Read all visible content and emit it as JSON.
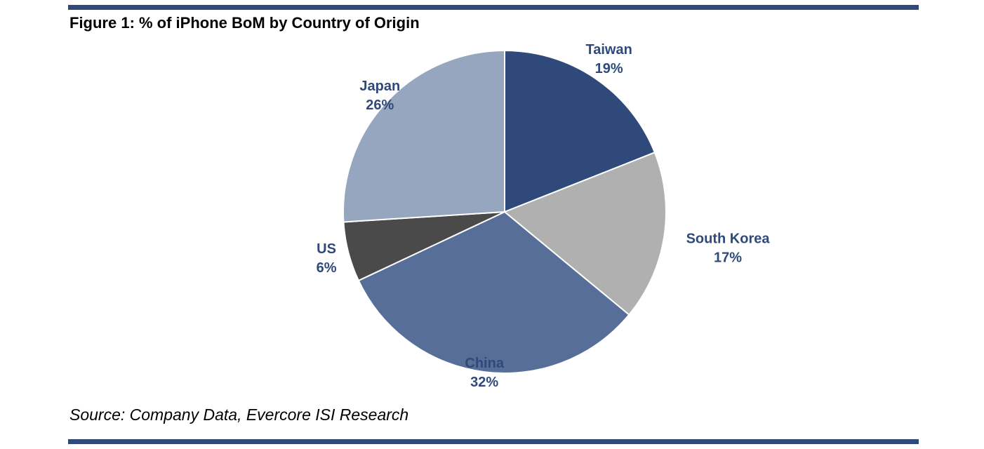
{
  "figure": {
    "title": "Figure 1: % of iPhone BoM by Country of Origin",
    "source": "Source: Company Data, Evercore ISI Research"
  },
  "colors": {
    "rule": "#2f4a7a",
    "label": "#2f4a7a"
  },
  "chart_data": {
    "type": "pie",
    "title": "Figure 1: % of iPhone BoM by Country of Origin",
    "unit": "%",
    "start": "12 o'clock",
    "direction": "clockwise",
    "slices": [
      {
        "label": "Taiwan",
        "value": 19,
        "value_label": "19%",
        "color": "#2f4a7a"
      },
      {
        "label": "South Korea",
        "value": 17,
        "value_label": "17%",
        "color": "#b0b0b0"
      },
      {
        "label": "China",
        "value": 32,
        "value_label": "32%",
        "color": "#566e98"
      },
      {
        "label": "US",
        "value": 6,
        "value_label": "6%",
        "color": "#4a4a4a"
      },
      {
        "label": "Japan",
        "value": 26,
        "value_label": "26%",
        "color": "#97a6bf"
      }
    ]
  }
}
